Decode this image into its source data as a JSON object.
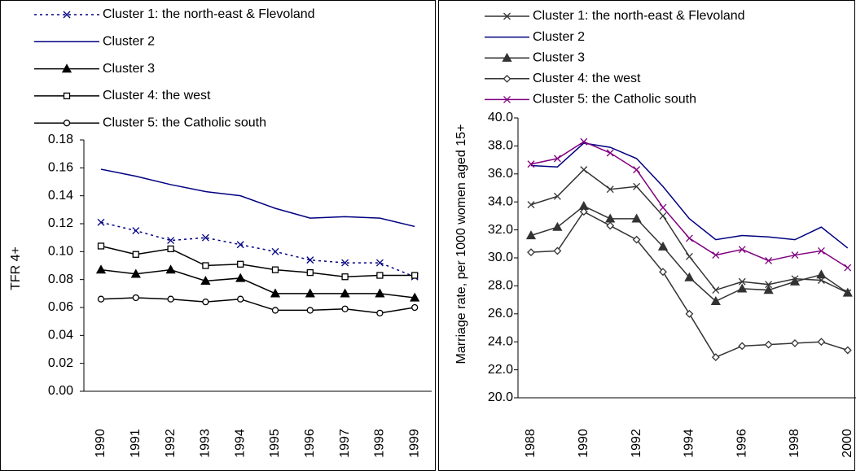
{
  "chart_data": [
    {
      "type": "line",
      "y_label": "TFR 4+",
      "categories": [
        "1990",
        "1991",
        "1992",
        "1993",
        "1994",
        "1995",
        "1996",
        "1997",
        "1998",
        "1999"
      ],
      "ylim": [
        0,
        0.18
      ],
      "yticks": [
        {
          "value": 0,
          "label": "0.00"
        },
        {
          "value": 0.02,
          "label": "0.02"
        },
        {
          "value": 0.04,
          "label": "0.04"
        },
        {
          "value": 0.06,
          "label": "0.06"
        },
        {
          "value": 0.08,
          "label": "0.08"
        },
        {
          "value": 0.1,
          "label": "0.10"
        },
        {
          "value": 0.12,
          "label": "0.12"
        },
        {
          "value": 0.14,
          "label": "0.14"
        },
        {
          "value": 0.16,
          "label": "0.16"
        },
        {
          "value": 0.18,
          "label": "0.18"
        }
      ],
      "series": [
        {
          "name": "Cluster 1: the north-east & Flevoland",
          "color": "#000080",
          "marker": "x",
          "dash": true,
          "values": [
            0.121,
            0.115,
            0.108,
            0.11,
            0.105,
            0.1,
            0.094,
            0.092,
            0.092,
            0.082
          ]
        },
        {
          "name": "Cluster 2",
          "color": "#000080",
          "marker": "none",
          "values": [
            0.159,
            0.154,
            0.148,
            0.143,
            0.14,
            0.131,
            0.124,
            0.125,
            0.124,
            0.118
          ]
        },
        {
          "name": "Cluster 3",
          "color": "#000000",
          "marker": "triangle",
          "values": [
            0.087,
            0.084,
            0.087,
            0.079,
            0.081,
            0.07,
            0.07,
            0.07,
            0.07,
            0.067
          ]
        },
        {
          "name": "Cluster 4: the west",
          "color": "#000000",
          "marker": "square",
          "values": [
            0.104,
            0.098,
            0.102,
            0.09,
            0.091,
            0.087,
            0.085,
            0.082,
            0.083,
            0.083
          ]
        },
        {
          "name": "Cluster 5: the Catholic south",
          "color": "#000000",
          "marker": "circle",
          "values": [
            0.066,
            0.067,
            0.066,
            0.064,
            0.066,
            0.058,
            0.058,
            0.059,
            0.056,
            0.06
          ]
        }
      ]
    },
    {
      "type": "line",
      "y_label": "Marriage rate, per 1000 women aged 15+",
      "categories": [
        "1988",
        null,
        "1990",
        null,
        "1992",
        null,
        "1994",
        null,
        "1996",
        null,
        "1998",
        null,
        "2000"
      ],
      "ylim": [
        20,
        40
      ],
      "yticks": [
        {
          "value": 20,
          "label": "20.0"
        },
        {
          "value": 22,
          "label": "22.0"
        },
        {
          "value": 24,
          "label": "24.0"
        },
        {
          "value": 26,
          "label": "26.0"
        },
        {
          "value": 28,
          "label": "28.0"
        },
        {
          "value": 30,
          "label": "30.0"
        },
        {
          "value": 32,
          "label": "32.0"
        },
        {
          "value": 34,
          "label": "34.0"
        },
        {
          "value": 36,
          "label": "36.0"
        },
        {
          "value": 38,
          "label": "38.0"
        },
        {
          "value": 40,
          "label": "40.0"
        }
      ],
      "series": [
        {
          "name": "Cluster 1: the north-east & Flevoland",
          "color": "#333333",
          "marker": "x",
          "values": [
            33.8,
            34.4,
            36.3,
            34.9,
            35.1,
            33.0,
            30.1,
            27.7,
            28.3,
            28.1,
            28.5,
            28.4,
            27.5
          ]
        },
        {
          "name": "Cluster 2",
          "color": "#000080",
          "marker": "none",
          "values": [
            36.6,
            36.5,
            38.2,
            37.9,
            37.1,
            35.1,
            32.8,
            31.3,
            31.6,
            31.5,
            31.3,
            32.2,
            30.7
          ]
        },
        {
          "name": "Cluster 3",
          "color": "#333333",
          "marker": "triangle",
          "values": [
            31.6,
            32.2,
            33.7,
            32.8,
            32.8,
            30.8,
            28.6,
            26.9,
            27.8,
            27.7,
            28.3,
            28.8,
            27.5
          ]
        },
        {
          "name": "Cluster 4: the west",
          "color": "#333333",
          "marker": "diamond",
          "values": [
            30.4,
            30.5,
            33.3,
            32.3,
            31.3,
            29.0,
            26.0,
            22.9,
            23.7,
            23.8,
            23.9,
            24.0,
            23.4
          ]
        },
        {
          "name": "Cluster 5: the Catholic south",
          "color": "#800080",
          "marker": "x",
          "values": [
            36.7,
            37.1,
            38.3,
            37.5,
            36.3,
            33.6,
            31.4,
            30.2,
            30.6,
            29.8,
            30.2,
            30.5,
            29.3
          ]
        }
      ]
    }
  ]
}
